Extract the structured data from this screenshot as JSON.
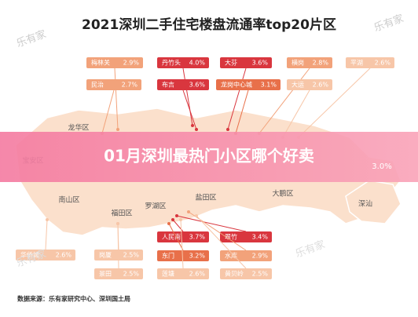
{
  "header": {
    "title": "2021深圳二手住宅楼盘流通率top20片区"
  },
  "banner": {
    "text": "01月深圳最热门小区哪个好卖"
  },
  "regions": [
    {
      "label": "龙华区"
    },
    {
      "label": "宝安区"
    },
    {
      "label": "南山区"
    },
    {
      "label": "福田区"
    },
    {
      "label": "罗湖区"
    },
    {
      "label": "盐田区"
    },
    {
      "label": "大鹏区"
    },
    {
      "label": "深汕"
    }
  ],
  "callouts": [
    {
      "name": "梅林关",
      "value": "2.9%"
    },
    {
      "name": "丹竹头",
      "value": "4.0%"
    },
    {
      "name": "大芬",
      "value": "3.6%"
    },
    {
      "name": "横岗",
      "value": "2.8%"
    },
    {
      "name": "平湖",
      "value": "2.6%"
    },
    {
      "name": "民治",
      "value": "2.7%"
    },
    {
      "name": "布吉",
      "value": "3.6%"
    },
    {
      "name": "龙岗中心城",
      "value": "3.1%"
    },
    {
      "name": "大运",
      "value": "2.6%"
    },
    {
      "name": "华侨城",
      "value": "2.6%"
    },
    {
      "name": "岗厦",
      "value": "2.5%"
    },
    {
      "name": "景田",
      "value": "2.5%"
    },
    {
      "name": "人民南",
      "value": "3.7%"
    },
    {
      "name": "翠竹",
      "value": "3.4%"
    },
    {
      "name": "东门",
      "value": "3.2%"
    },
    {
      "name": "水库",
      "value": "2.9%"
    },
    {
      "name": "莲塘",
      "value": "2.6%"
    },
    {
      "name": "黄贝岭",
      "value": "2.5%"
    }
  ],
  "hidden_value": "3.0%",
  "source": "数据来源：乐有家研究中心、深圳国土局",
  "watermark": "乐有家"
}
